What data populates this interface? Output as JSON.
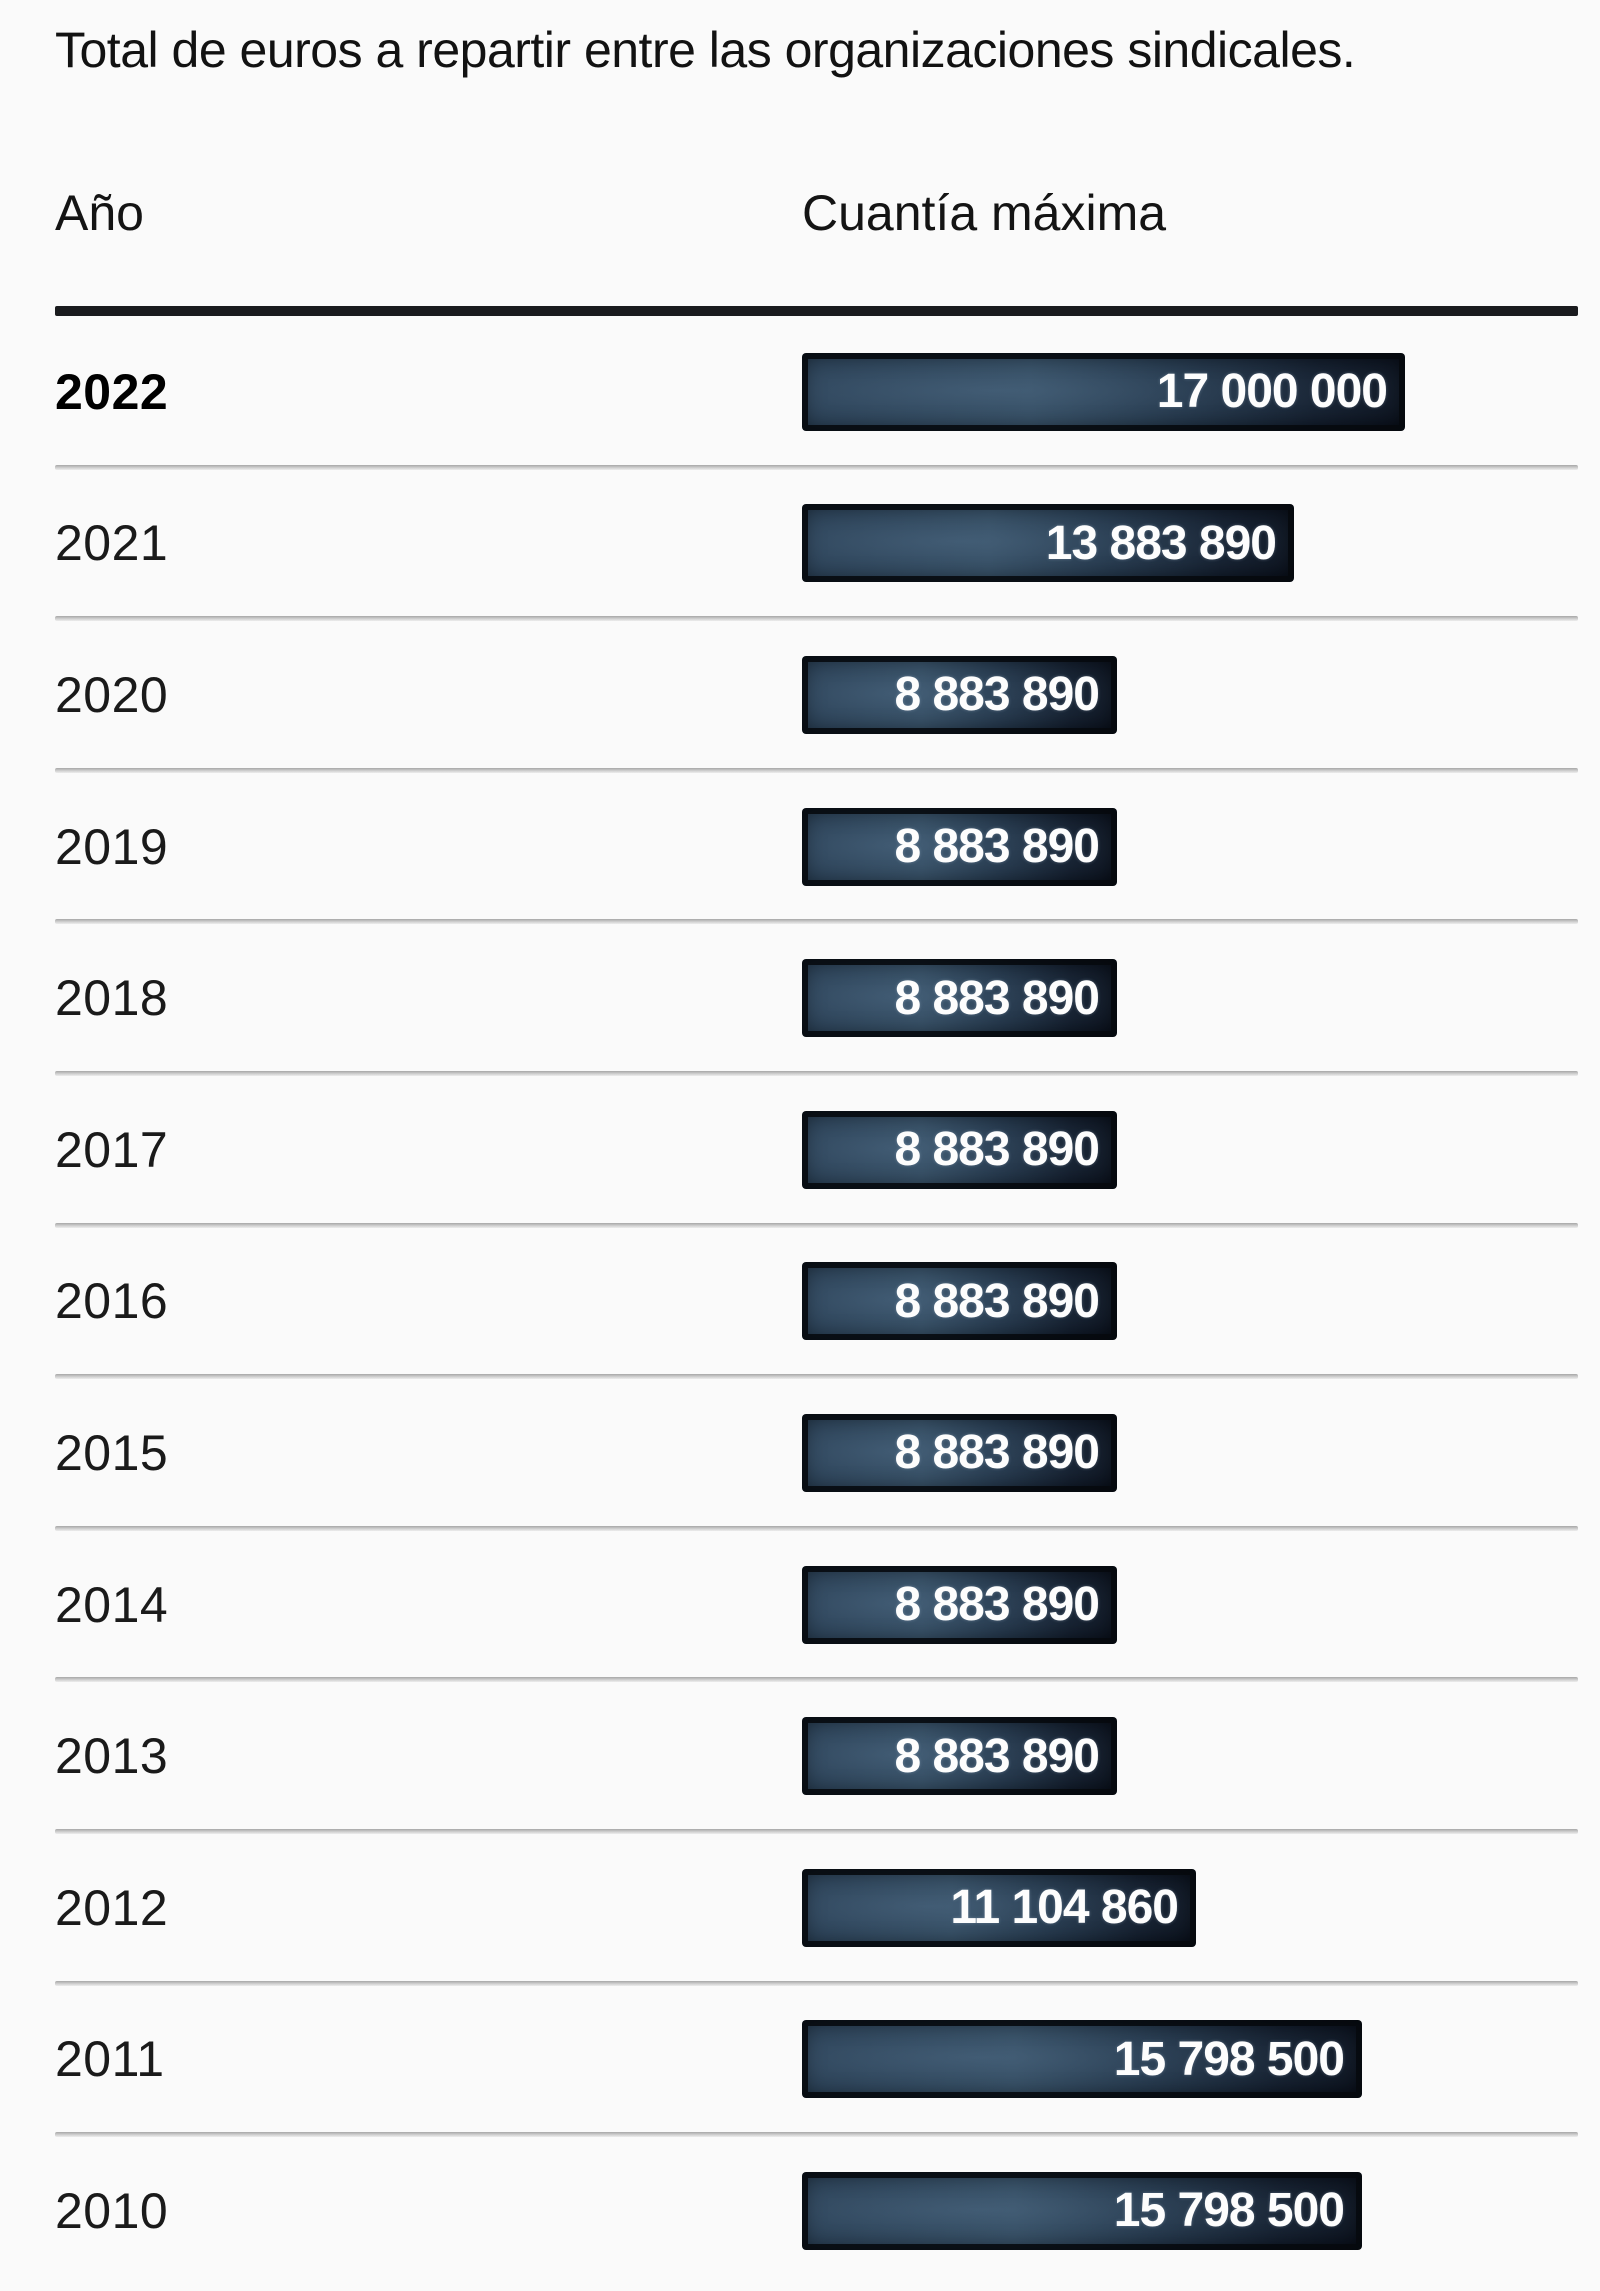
{
  "title": "Total de euros a repartir entre las organizaciones sindicales.",
  "columns": {
    "year": "Año",
    "amount": "Cuantía máxima"
  },
  "rows": [
    {
      "year": "2022",
      "value": 17000000,
      "label": "17 000 000",
      "bold": true
    },
    {
      "year": "2021",
      "value": 13883890,
      "label": "13 883 890",
      "bold": false
    },
    {
      "year": "2020",
      "value": 8883890,
      "label": "8 883 890",
      "bold": false
    },
    {
      "year": "2019",
      "value": 8883890,
      "label": "8 883 890",
      "bold": false
    },
    {
      "year": "2018",
      "value": 8883890,
      "label": "8 883 890",
      "bold": false
    },
    {
      "year": "2017",
      "value": 8883890,
      "label": "8 883 890",
      "bold": false
    },
    {
      "year": "2016",
      "value": 8883890,
      "label": "8 883 890",
      "bold": false
    },
    {
      "year": "2015",
      "value": 8883890,
      "label": "8 883 890",
      "bold": false
    },
    {
      "year": "2014",
      "value": 8883890,
      "label": "8 883 890",
      "bold": false
    },
    {
      "year": "2013",
      "value": 8883890,
      "label": "8 883 890",
      "bold": false
    },
    {
      "year": "2012",
      "value": 11104860,
      "label": "11 104 860",
      "bold": false
    },
    {
      "year": "2011",
      "value": 15798500,
      "label": "15 798 500",
      "bold": false
    },
    {
      "year": "2010",
      "value": 15798500,
      "label": "15 798 500",
      "bold": false
    }
  ],
  "colors": {
    "background": "#fafafa",
    "text": "#161616",
    "bar_light": "#2d4458",
    "bar_dark": "#0a101b",
    "bar_border": "#060a0e",
    "value_text": "#fdfdfd",
    "header_rule": "#1a1b1e",
    "row_separator": "#c9c9c9"
  },
  "chart_data": {
    "type": "bar",
    "orientation": "horizontal",
    "title": "Total de euros a repartir entre las organizaciones sindicales.",
    "xlabel": "Cuantía máxima",
    "ylabel": "Año",
    "categories": [
      "2022",
      "2021",
      "2020",
      "2019",
      "2018",
      "2017",
      "2016",
      "2015",
      "2014",
      "2013",
      "2012",
      "2011",
      "2010"
    ],
    "values": [
      17000000,
      13883890,
      8883890,
      8883890,
      8883890,
      8883890,
      8883890,
      8883890,
      8883890,
      8883890,
      11104860,
      15798500,
      15798500
    ],
    "value_labels": [
      "17 000 000",
      "13 883 890",
      "8 883 890",
      "8 883 890",
      "8 883 890",
      "8 883 890",
      "8 883 890",
      "8 883 890",
      "8 883 890",
      "8 883 890",
      "11 104 860",
      "15 798 500",
      "15 798 500"
    ],
    "xlim": [
      0,
      17000000
    ],
    "grid": false,
    "legend": false,
    "bars_start_at_zero": true,
    "value_labels_inside_bars": true
  }
}
